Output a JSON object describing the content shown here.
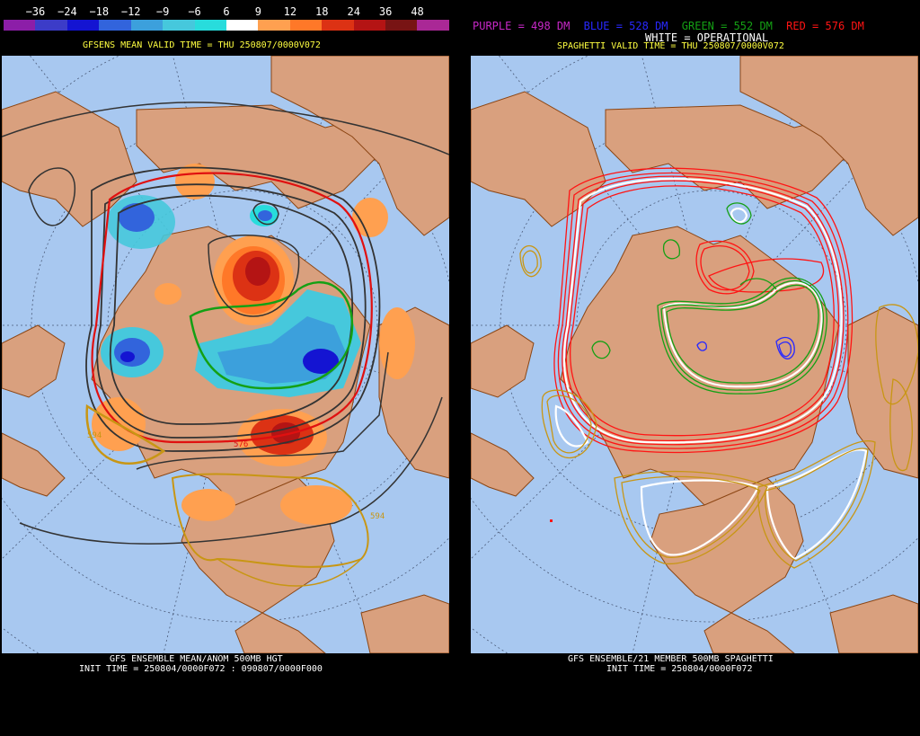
{
  "left": {
    "colorbar": {
      "labels": [
        "−36",
        "−24",
        "−18",
        "−12",
        "−9",
        "−6",
        "6",
        "9",
        "12",
        "18",
        "24",
        "36",
        "48"
      ],
      "colors": [
        "#8c1ea8",
        "#3c3cc8",
        "#1414d2",
        "#3264dc",
        "#3ca0dc",
        "#46c8dc",
        "#28dcdc",
        "#ffffff",
        "#ffa050",
        "#ff7828",
        "#dc3214",
        "#b41414",
        "#781414",
        "#aa2896"
      ]
    },
    "title": "GFSENS MEAN VALID TIME = THU 250807/0000V072",
    "bottom_line1": "GFS ENSEMBLE MEAN/ANOM 500MB HGT",
    "bottom_line2": "INIT TIME = 250804/0000F072 : 090807/0000F000",
    "contour_labels": [
      "594",
      "576",
      "594"
    ]
  },
  "right": {
    "legend": {
      "purple": "PURPLE = 498 DM",
      "blue": "BLUE = 528 DM",
      "green": "GREEN = 552 DM",
      "red": "RED = 576 DM",
      "white": "WHITE = OPERATIONAL"
    },
    "legend_colors": {
      "purple": "#c828c8",
      "blue": "#2828ff",
      "green": "#14a014",
      "red": "#ff1414",
      "white": "#ffffff"
    },
    "title": "SPAGHETTI VALID TIME = THU 250807/0000V072",
    "bottom_line1": "GFS ENSEMBLE/21 MEMBER 500MB SPAGHETTI",
    "bottom_line2": "INIT TIME = 250804/0000F072"
  },
  "colors": {
    "ocean": "#a8c8f0",
    "land": "#d9a07e",
    "border": "#8b4513"
  }
}
